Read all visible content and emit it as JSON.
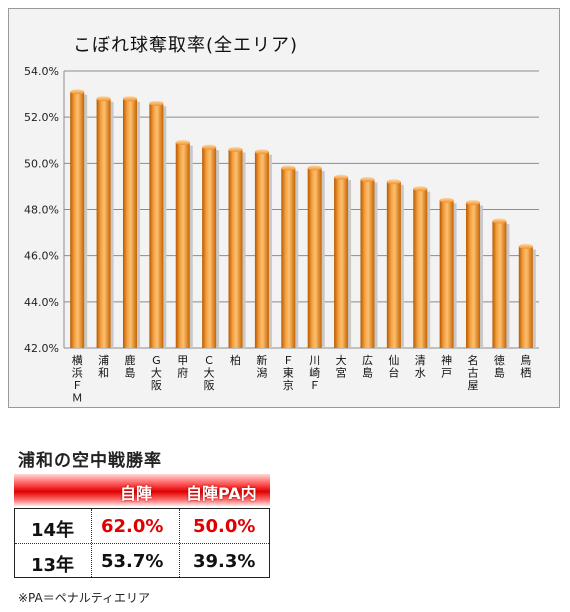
{
  "chart_data": {
    "type": "bar",
    "title": "こぼれ球奪取率(全エリア)",
    "categories": [
      "横浜FM",
      "浦和",
      "鹿島",
      "G大阪",
      "甲府",
      "C大阪",
      "柏",
      "新潟",
      "F東京",
      "川崎F",
      "大宮",
      "広島",
      "仙台",
      "清水",
      "神戸",
      "名古屋",
      "徳島",
      "鳥栖"
    ],
    "category_labels": [
      "横浜ＦＭ",
      "浦和",
      "鹿島",
      "Ｇ大阪",
      "甲府",
      "Ｃ大阪",
      "柏",
      "新潟",
      "Ｆ東京",
      "川崎Ｆ",
      "大宮",
      "広島",
      "仙台",
      "清水",
      "神戸",
      "名古屋",
      "徳島",
      "鳥栖"
    ],
    "values": [
      53.1,
      52.8,
      52.8,
      52.6,
      50.9,
      50.7,
      50.6,
      50.5,
      49.8,
      49.8,
      49.4,
      49.3,
      49.2,
      48.9,
      48.4,
      48.3,
      47.5,
      46.4
    ],
    "ylim": [
      42.0,
      54.0
    ],
    "yticks": [
      "42.0%",
      "44.0%",
      "46.0%",
      "48.0%",
      "50.0%",
      "52.0%",
      "54.0%"
    ],
    "ytick_values": [
      42,
      44,
      46,
      48,
      50,
      52,
      54
    ],
    "xlabel": "",
    "ylabel": "",
    "grid": true,
    "bar_color": "#f08a1e"
  },
  "air_battle": {
    "title": "浦和の空中戦勝率",
    "headers": [
      "自陣",
      "自陣PA内"
    ],
    "rows": [
      {
        "year": "14年",
        "jijin": "62.0%",
        "jijin_pa": "50.0%"
      },
      {
        "year": "13年",
        "jijin": "53.7%",
        "jijin_pa": "39.3%"
      }
    ],
    "highlight_color": "#e00000",
    "header_color": "#e00000"
  },
  "footnote": "※PA＝ペナルティエリア"
}
